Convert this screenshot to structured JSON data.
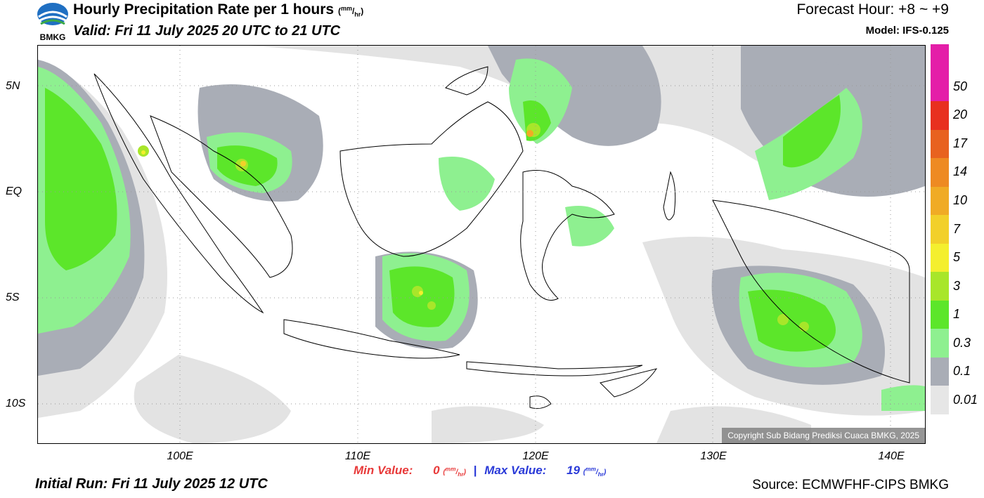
{
  "logo": {
    "name": "bmkg-logo",
    "text": "BMKG"
  },
  "header": {
    "title": "Hourly Precipitation Rate per 1 hours",
    "title_unit_num": "mm",
    "title_unit_den": "hr",
    "valid": "Valid: Fri 11 July 2025 20 UTC to 21 UTC",
    "forecast_hour": "Forecast Hour: +8 ~ +9",
    "model": "Model: IFS-0.125"
  },
  "map": {
    "lat_labels": [
      "5N",
      "EQ",
      "5S",
      "10S"
    ],
    "lon_labels": [
      "100E",
      "110E",
      "120E",
      "130E",
      "140E"
    ],
    "copyright": "Copyright Sub Bidang Prediksi Cuaca BMKG, 2025"
  },
  "colorbar": {
    "labels": [
      "50",
      "20",
      "17",
      "14",
      "10",
      "7",
      "5",
      "3",
      "1",
      "0.3",
      "0.1",
      "0.01"
    ],
    "colors": [
      "#e41ea8",
      "#e8301f",
      "#e8621f",
      "#ee8a22",
      "#f0ab25",
      "#f2d02a",
      "#f4ef2e",
      "#a8e62a",
      "#5ce62a",
      "#8ef090",
      "#a9adb6",
      "#e6e6e6"
    ]
  },
  "footer": {
    "min_label": "Min Value:",
    "min_value": "0",
    "max_label": "Max Value:",
    "max_value": "19",
    "unit_num": "mm",
    "unit_den": "hr",
    "initial_run": "Initial Run: Fri 11 July 2025 12 UTC",
    "source": "Source: ECMWFHF-CIPS BMKG"
  }
}
